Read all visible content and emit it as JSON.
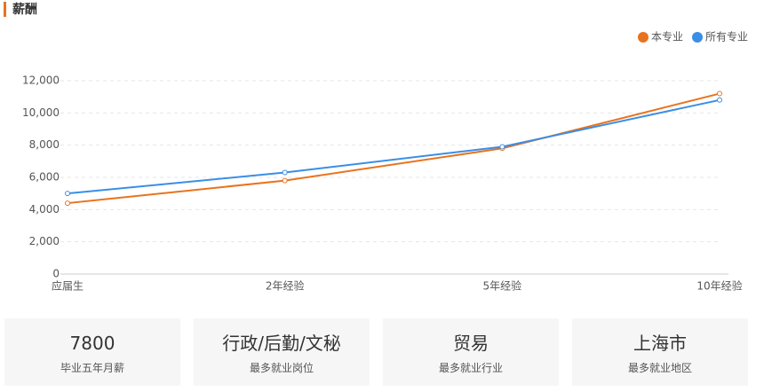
{
  "title": "薪酬",
  "chart_data": {
    "type": "line",
    "categories": [
      "应届生",
      "2年经验",
      "5年经验",
      "10年经验"
    ],
    "series": [
      {
        "name": "本专业",
        "color": "#e8731e",
        "values": [
          4400,
          5800,
          7800,
          11200
        ]
      },
      {
        "name": "所有专业",
        "color": "#3a8ee6",
        "values": [
          5000,
          6300,
          7900,
          10800
        ]
      }
    ],
    "ylim": [
      0,
      12000
    ],
    "yticks": [
      0,
      {
        "value": 2000,
        "label": "2,000"
      },
      {
        "value": 4000,
        "label": "4,000"
      },
      {
        "value": 6000,
        "label": "6,000"
      },
      {
        "value": 8000,
        "label": "8,000"
      },
      {
        "value": 10000,
        "label": "10,000"
      },
      {
        "value": 12000,
        "label": "12,000"
      }
    ],
    "grid": true,
    "legend": "top-right"
  },
  "cards": [
    {
      "value": 7800,
      "label": "毕业五年月薪"
    },
    {
      "value": "行政/后勤/文秘",
      "label": "最多就业岗位"
    },
    {
      "value": "贸易",
      "label": "最多就业行业"
    },
    {
      "value": "上海市",
      "label": "最多就业地区"
    }
  ]
}
